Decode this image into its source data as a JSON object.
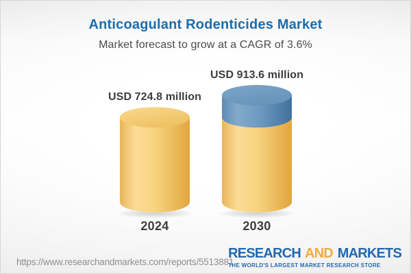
{
  "header": {
    "title": "Anticoagulant Rodenticides Market",
    "subtitle": "Market forecast to grow at a CAGR of 3.6%"
  },
  "chart_data": {
    "type": "bar",
    "variant": "3d-cylinder",
    "categories": [
      "2024",
      "2030"
    ],
    "values": [
      724.8,
      913.6
    ],
    "value_labels": [
      "USD 724.8 million",
      "USD 913.6 million"
    ],
    "unit": "USD million",
    "cagr_percent": 3.6,
    "legend_position": "none",
    "grid": false,
    "colors": {
      "base_segment": "#F6CE74",
      "growth_segment": "#6C99BF",
      "label_text": "#3C3C3C"
    }
  },
  "footer": {
    "url": "https://www.researchandmarkets.com/reports/5513881",
    "logo": {
      "research": "RESEARCH",
      "and": "AND",
      "markets": "MARKETS",
      "tagline": "THE WORLD'S LARGEST MARKET RESEARCH STORE"
    }
  }
}
